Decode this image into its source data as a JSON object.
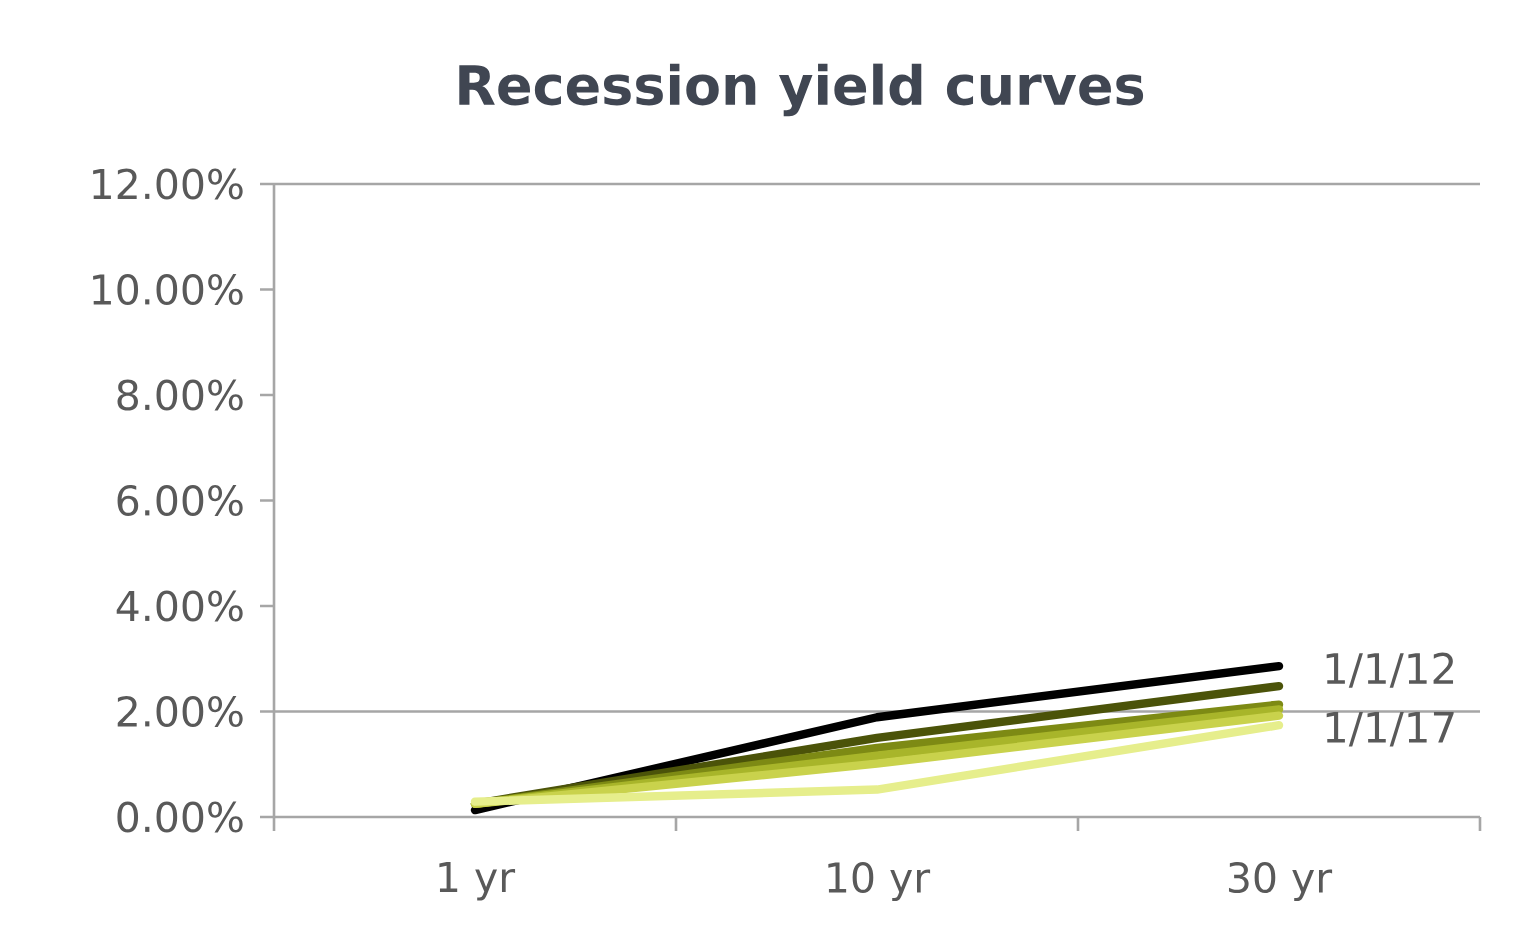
{
  "chart_data": {
    "type": "line",
    "title": "Recession yield curves",
    "categories": [
      "1 yr",
      "10 yr",
      "30 yr"
    ],
    "series": [
      {
        "name": "1/1/12",
        "color": "#000000",
        "values": [
          0.13,
          1.89,
          2.86
        ]
      },
      {
        "color": "#4b5309",
        "values": [
          0.25,
          1.5,
          2.48
        ]
      },
      {
        "color": "#7d8a14",
        "values": [
          0.25,
          1.31,
          2.13
        ]
      },
      {
        "color": "#a8b52a",
        "values": [
          0.25,
          1.16,
          2.04
        ]
      },
      {
        "color": "#c9d24c",
        "values": [
          0.25,
          1.01,
          1.92
        ]
      },
      {
        "name": "1/1/17",
        "color": "#e6ee8c",
        "values": [
          0.29,
          0.52,
          1.74
        ]
      }
    ],
    "ylim": [
      0,
      12
    ],
    "yticks": [
      {
        "value": 0,
        "label": "0.00%"
      },
      {
        "value": 2,
        "label": "2.00%"
      },
      {
        "value": 4,
        "label": "4.00%"
      },
      {
        "value": 6,
        "label": "6.00%"
      },
      {
        "value": 8,
        "label": "8.00%"
      },
      {
        "value": 10,
        "label": "10.00%"
      },
      {
        "value": 12,
        "label": "12.00%"
      }
    ],
    "ref_lines": [
      {
        "axis": "y",
        "value": 2,
        "color": "#a6a6a6"
      }
    ],
    "marker": "none",
    "line_style": "solid"
  }
}
